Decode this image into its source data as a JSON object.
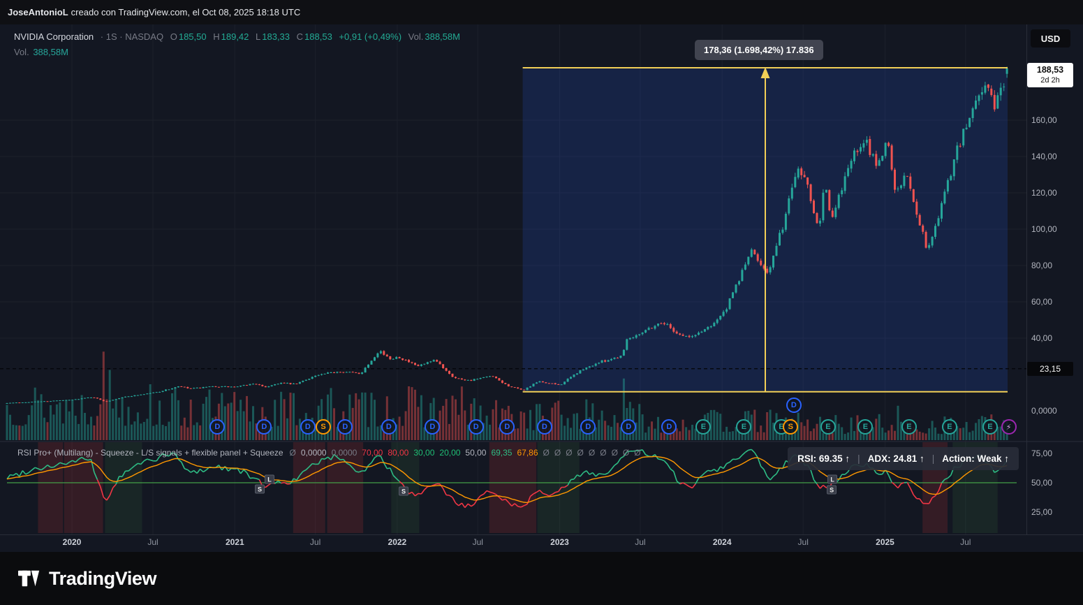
{
  "attribution": {
    "author": "JoseAntonioL",
    "rest": " creado con TradingView.com, el Oct 08, 2025 18:18 UTC"
  },
  "header": {
    "title_main": "NVIDIA Corporation",
    "title_rest": "· 1S · NASDAQ",
    "ohlc": {
      "o_label": "O",
      "o": "185,50",
      "h_label": "H",
      "h": "189,42",
      "l_label": "L",
      "l": "183,33",
      "c_label": "C",
      "c": "188,53",
      "change": "+0,91 (+0,49%)",
      "vol_label": "Vol.",
      "vol": "388,58M"
    },
    "vol_row": {
      "label": "Vol.",
      "value": "388,58M"
    }
  },
  "toolbar": {
    "currency_button": "USD"
  },
  "measurement": {
    "label": "178,36 (1.698,42%) 17.836"
  },
  "price_scale": {
    "current_price": "188,53",
    "countdown": "2d 2h",
    "level_badge": "23,15",
    "level_value": 23.15,
    "ticks": [
      {
        "label": "160,00",
        "value": 160
      },
      {
        "label": "140,00",
        "value": 140
      },
      {
        "label": "120,00",
        "value": 120
      },
      {
        "label": "100,00",
        "value": 100
      },
      {
        "label": "80,00",
        "value": 80
      },
      {
        "label": "60,00",
        "value": 60
      },
      {
        "label": "40,00",
        "value": 40
      },
      {
        "label": "0,0000",
        "value": 0
      }
    ]
  },
  "time_axis": [
    {
      "label": "2020",
      "date": "2020-01-01",
      "major": true
    },
    {
      "label": "Jul",
      "date": "2020-07-01",
      "major": false
    },
    {
      "label": "2021",
      "date": "2021-01-01",
      "major": true
    },
    {
      "label": "Jul",
      "date": "2021-07-01",
      "major": false
    },
    {
      "label": "2022",
      "date": "2022-01-01",
      "major": true
    },
    {
      "label": "Jul",
      "date": "2022-07-01",
      "major": false
    },
    {
      "label": "2023",
      "date": "2023-01-01",
      "major": true
    },
    {
      "label": "Jul",
      "date": "2023-07-01",
      "major": false
    },
    {
      "label": "2024",
      "date": "2024-01-01",
      "major": true
    },
    {
      "label": "Jul",
      "date": "2024-07-01",
      "major": false
    },
    {
      "label": "2025",
      "date": "2025-01-01",
      "major": true
    },
    {
      "label": "Jul",
      "date": "2025-07-01",
      "major": false
    }
  ],
  "rsi_panel": {
    "title": "RSI Pro+ (Multilang) - Squeeze - L/S signals + flexible panel + Squeeze",
    "values": [
      {
        "t": "Ø",
        "c": "#787b86"
      },
      {
        "t": "0,0000",
        "c": "#b2b5be"
      },
      {
        "t": "0,0000",
        "c": "#787b86"
      },
      {
        "t": "70,00",
        "c": "#f23645"
      },
      {
        "t": "80,00",
        "c": "#f23645"
      },
      {
        "t": "30,00",
        "c": "#1fbf75"
      },
      {
        "t": "20,00",
        "c": "#1fbf75"
      },
      {
        "t": "50,00",
        "c": "#b2b5be"
      },
      {
        "t": "69,35",
        "c": "#2ebd85"
      },
      {
        "t": "67,86",
        "c": "#ff9800"
      },
      {
        "t": "Ø",
        "c": "#787b86"
      },
      {
        "t": "Ø",
        "c": "#787b86"
      },
      {
        "t": "Ø",
        "c": "#787b86"
      },
      {
        "t": "Ø",
        "c": "#787b86"
      },
      {
        "t": "Ø",
        "c": "#787b86"
      },
      {
        "t": "Ø",
        "c": "#787b86"
      },
      {
        "t": "Ø",
        "c": "#787b86"
      },
      {
        "t": "Ø",
        "c": "#787b86"
      },
      {
        "t": "Ø",
        "c": "#787b86"
      }
    ],
    "ticks": [
      {
        "label": "75,00",
        "value": 75
      },
      {
        "label": "50,00",
        "value": 50
      },
      {
        "label": "25,00",
        "value": 25
      }
    ],
    "status": {
      "rsi": "RSI: 69.35 ↑",
      "adx": "ADX: 24.81 ↑",
      "action": "Action: Weak ↑"
    },
    "signals": [
      {
        "xf": 0.2526,
        "y": 700,
        "label": "S"
      },
      {
        "xf": 0.2624,
        "y": 686,
        "label": "L"
      },
      {
        "xf": 0.3964,
        "y": 703,
        "label": "S"
      },
      {
        "xf": 0.8249,
        "y": 686,
        "label": "L"
      },
      {
        "xf": 0.8242,
        "y": 701,
        "label": "S"
      }
    ]
  },
  "footer": {
    "brand": "TradingView"
  },
  "chart_data": {
    "type": "candlestick",
    "title": "NVIDIA Corporation · 1S · NASDAQ",
    "symbol": "NVIDIA Corporation",
    "exchange": "NASDAQ",
    "interval": "1S (weekly)",
    "currency": "USD",
    "x_range": {
      "start": "2019-08-05",
      "end": "2025-10-08"
    },
    "y_axis": {
      "min": 0,
      "max": 192,
      "ticks": [
        160,
        140,
        120,
        100,
        80,
        60,
        40,
        0
      ],
      "level_line": 23.15
    },
    "last_bar": {
      "open": 185.5,
      "high": 189.42,
      "low": 183.33,
      "close": 188.53,
      "change": "+0,91 (+0,49%)",
      "volume": "388,58M"
    },
    "price_keypoints": [
      [
        "2019-08-05",
        4.3
      ],
      [
        "2019-09-16",
        4.7
      ],
      [
        "2019-11-04",
        5.3
      ],
      [
        "2019-12-30",
        6.0
      ],
      [
        "2020-02-17",
        7.6
      ],
      [
        "2020-03-16",
        5.0
      ],
      [
        "2020-04-20",
        7.3
      ],
      [
        "2020-06-08",
        9.1
      ],
      [
        "2020-07-13",
        10.4
      ],
      [
        "2020-08-31",
        13.5
      ],
      [
        "2020-09-21",
        12.1
      ],
      [
        "2020-11-16",
        13.4
      ],
      [
        "2021-01-04",
        13.1
      ],
      [
        "2021-02-15",
        15.1
      ],
      [
        "2021-03-08",
        12.9
      ],
      [
        "2021-04-12",
        15.4
      ],
      [
        "2021-05-17",
        14.6
      ],
      [
        "2021-06-28",
        19.1
      ],
      [
        "2021-08-23",
        21.8
      ],
      [
        "2021-10-11",
        20.5
      ],
      [
        "2021-11-22",
        33.5
      ],
      [
        "2021-12-13",
        28.4
      ],
      [
        "2022-01-03",
        29.9
      ],
      [
        "2022-02-14",
        24.4
      ],
      [
        "2022-03-28",
        27.7
      ],
      [
        "2022-05-09",
        18.1
      ],
      [
        "2022-06-13",
        16.7
      ],
      [
        "2022-08-01",
        19.1
      ],
      [
        "2022-09-05",
        13.9
      ],
      [
        "2022-10-10",
        11.2
      ],
      [
        "2022-11-14",
        16.1
      ],
      [
        "2022-12-19",
        14.7
      ],
      [
        "2023-01-02",
        14.3
      ],
      [
        "2023-02-13",
        21.6
      ],
      [
        "2023-03-27",
        26.4
      ],
      [
        "2023-05-22",
        30.5
      ],
      [
        "2023-05-29",
        38.9
      ],
      [
        "2023-07-10",
        44.2
      ],
      [
        "2023-08-21",
        49.0
      ],
      [
        "2023-09-25",
        42.2
      ],
      [
        "2023-10-23",
        40.3
      ],
      [
        "2023-12-04",
        46.6
      ],
      [
        "2024-01-08",
        54.7
      ],
      [
        "2024-02-19",
        78.8
      ],
      [
        "2024-03-04",
        88.0
      ],
      [
        "2024-04-15",
        76.2
      ],
      [
        "2024-05-20",
        104.8
      ],
      [
        "2024-06-17",
        135.2
      ],
      [
        "2024-07-08",
        127.4
      ],
      [
        "2024-08-05",
        100.5
      ],
      [
        "2024-08-19",
        129.0
      ],
      [
        "2024-09-02",
        102.8
      ],
      [
        "2024-10-14",
        138.1
      ],
      [
        "2024-11-18",
        147.6
      ],
      [
        "2024-12-16",
        134.7
      ],
      [
        "2025-01-06",
        150.0
      ],
      [
        "2025-01-27",
        118.4
      ],
      [
        "2025-02-17",
        131.3
      ],
      [
        "2025-03-10",
        112.7
      ],
      [
        "2025-04-07",
        87.6
      ],
      [
        "2025-05-12",
        116.7
      ],
      [
        "2025-06-09",
        141.7
      ],
      [
        "2025-07-07",
        159.3
      ],
      [
        "2025-07-28",
        173.7
      ],
      [
        "2025-08-18",
        180.8
      ],
      [
        "2025-09-01",
        167.0
      ],
      [
        "2025-09-22",
        178.2
      ],
      [
        "2025-10-08",
        188.53
      ]
    ],
    "rsi_keypoints": [
      [
        "2019-08-05",
        54
      ],
      [
        "2019-10-07",
        62
      ],
      [
        "2020-01-06",
        68
      ],
      [
        "2020-02-10",
        71
      ],
      [
        "2020-03-16",
        34
      ],
      [
        "2020-04-20",
        56
      ],
      [
        "2020-06-08",
        68
      ],
      [
        "2020-08-17",
        75
      ],
      [
        "2020-09-21",
        58
      ],
      [
        "2020-11-16",
        64
      ],
      [
        "2021-01-11",
        61
      ],
      [
        "2021-03-08",
        48
      ],
      [
        "2021-05-17",
        52
      ],
      [
        "2021-07-05",
        68
      ],
      [
        "2021-08-23",
        73
      ],
      [
        "2021-10-11",
        58
      ],
      [
        "2021-11-22",
        74
      ],
      [
        "2021-12-20",
        58
      ],
      [
        "2022-01-24",
        42
      ],
      [
        "2022-02-21",
        38
      ],
      [
        "2022-03-28",
        51
      ],
      [
        "2022-05-09",
        34
      ],
      [
        "2022-06-13",
        29
      ],
      [
        "2022-08-01",
        44
      ],
      [
        "2022-09-12",
        32
      ],
      [
        "2022-10-10",
        29
      ],
      [
        "2022-11-14",
        45
      ],
      [
        "2022-12-19",
        39
      ],
      [
        "2023-01-30",
        52
      ],
      [
        "2023-02-27",
        60
      ],
      [
        "2023-04-10",
        56
      ],
      [
        "2023-05-29",
        74
      ],
      [
        "2023-06-26",
        78
      ],
      [
        "2023-08-21",
        69
      ],
      [
        "2023-09-25",
        52
      ],
      [
        "2023-10-23",
        44
      ],
      [
        "2023-11-20",
        60
      ],
      [
        "2023-12-26",
        62
      ],
      [
        "2024-02-05",
        72
      ],
      [
        "2024-03-11",
        79
      ],
      [
        "2024-04-15",
        53
      ],
      [
        "2024-05-20",
        66
      ],
      [
        "2024-06-17",
        76
      ],
      [
        "2024-07-15",
        62
      ],
      [
        "2024-08-05",
        44
      ],
      [
        "2024-09-02",
        48
      ],
      [
        "2024-10-14",
        62
      ],
      [
        "2024-11-18",
        67
      ],
      [
        "2024-12-16",
        57
      ],
      [
        "2025-01-06",
        60
      ],
      [
        "2025-01-27",
        44
      ],
      [
        "2025-02-17",
        50
      ],
      [
        "2025-03-10",
        38
      ],
      [
        "2025-04-07",
        29
      ],
      [
        "2025-05-12",
        52
      ],
      [
        "2025-06-09",
        63
      ],
      [
        "2025-07-07",
        70
      ],
      [
        "2025-07-28",
        73
      ],
      [
        "2025-08-18",
        68
      ],
      [
        "2025-09-08",
        57
      ],
      [
        "2025-09-22",
        63
      ],
      [
        "2025-10-08",
        69.35
      ]
    ],
    "measurement": {
      "from_date": "2022-10-10",
      "to_date": "2025-10-08",
      "from_price": 10.5,
      "to_price": 188.86,
      "arrow_date": "2024-04-07",
      "label": "178,36 (1.698,42%) 17.836"
    },
    "events": [
      {
        "date": "2020-11-23",
        "label": "D",
        "type": "dividend"
      },
      {
        "date": "2021-03-08",
        "label": "D",
        "type": "dividend"
      },
      {
        "date": "2021-06-14",
        "label": "D",
        "type": "dividend"
      },
      {
        "date": "2021-07-19",
        "label": "S",
        "type": "split"
      },
      {
        "date": "2021-09-06",
        "label": "D",
        "type": "dividend"
      },
      {
        "date": "2021-12-13",
        "label": "D",
        "type": "dividend"
      },
      {
        "date": "2022-03-21",
        "label": "D",
        "type": "dividend"
      },
      {
        "date": "2022-06-27",
        "label": "D",
        "type": "dividend"
      },
      {
        "date": "2022-09-05",
        "label": "D",
        "type": "dividend"
      },
      {
        "date": "2022-11-28",
        "label": "D",
        "type": "dividend"
      },
      {
        "date": "2023-03-06",
        "label": "D",
        "type": "dividend"
      },
      {
        "date": "2023-06-05",
        "label": "D",
        "type": "dividend"
      },
      {
        "date": "2023-09-04",
        "label": "D",
        "type": "dividend"
      },
      {
        "date": "2023-11-20",
        "label": "E",
        "type": "earnings"
      },
      {
        "date": "2024-02-19",
        "label": "E",
        "type": "earnings"
      },
      {
        "date": "2024-05-13",
        "label": "E",
        "type": "earnings"
      },
      {
        "date": "2024-06-03",
        "label": "S",
        "type": "split"
      },
      {
        "date": "2024-06-10",
        "label": "D",
        "type": "dividend",
        "row": 1
      },
      {
        "date": "2024-08-26",
        "label": "E",
        "type": "earnings"
      },
      {
        "date": "2024-11-18",
        "label": "E",
        "type": "earnings"
      },
      {
        "date": "2025-02-24",
        "label": "E",
        "type": "earnings"
      },
      {
        "date": "2025-05-26",
        "label": "E",
        "type": "earnings"
      },
      {
        "date": "2025-08-25",
        "label": "E",
        "type": "earnings"
      },
      {
        "date": "2025-10-06",
        "label": "⚡",
        "type": "alert"
      }
    ],
    "squeeze_bands": [
      {
        "from": 0.031,
        "to": 0.056,
        "c": "red"
      },
      {
        "from": 0.057,
        "to": 0.096,
        "c": "red"
      },
      {
        "from": 0.098,
        "to": 0.135,
        "c": "green"
      },
      {
        "from": 0.286,
        "to": 0.318,
        "c": "red"
      },
      {
        "from": 0.32,
        "to": 0.356,
        "c": "red"
      },
      {
        "from": 0.384,
        "to": 0.412,
        "c": "green"
      },
      {
        "from": 0.482,
        "to": 0.529,
        "c": "red"
      },
      {
        "from": 0.53,
        "to": 0.572,
        "c": "green"
      },
      {
        "from": 0.915,
        "to": 0.94,
        "c": "red"
      },
      {
        "from": 0.945,
        "to": 0.99,
        "c": "green"
      }
    ]
  }
}
